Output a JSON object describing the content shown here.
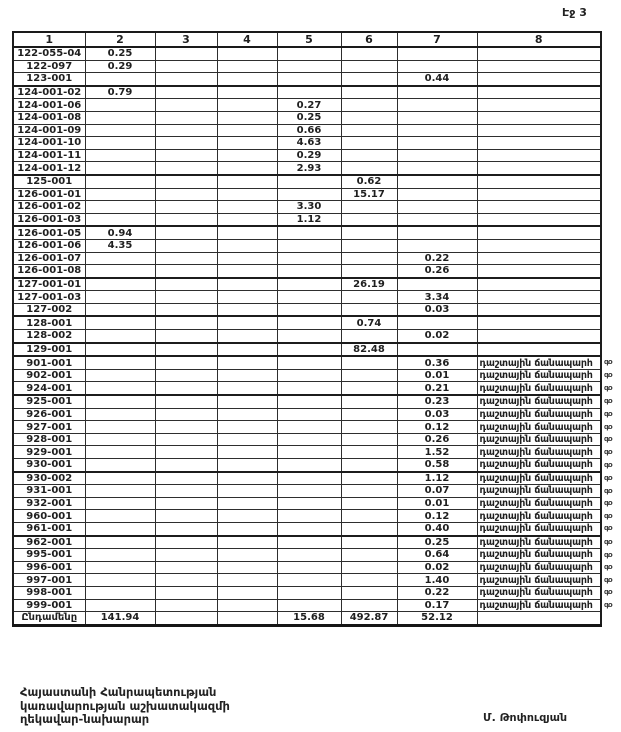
{
  "page_label": "Էջ 3",
  "table": {
    "headers": [
      "1",
      "2",
      "3",
      "4",
      "5",
      "6",
      "7",
      "8"
    ],
    "road_label": "դաշտային ճանապարհ",
    "margin_mark": "գօ",
    "rows": [
      {
        "id": "122-055-04",
        "cells": [
          "0.25",
          "",
          "",
          "",
          "",
          "",
          ""
        ]
      },
      {
        "id": "122-097",
        "cells": [
          "0.29",
          "",
          "",
          "",
          "",
          "",
          ""
        ]
      },
      {
        "id": "123-001",
        "cells": [
          "",
          "",
          "",
          "",
          "",
          "0.44",
          ""
        ]
      },
      {
        "id": "124-001-02",
        "cells": [
          "0.79",
          "",
          "",
          "",
          "",
          "",
          ""
        ],
        "thick_top": true
      },
      {
        "id": "124-001-06",
        "cells": [
          "",
          "",
          "",
          "0.27",
          "",
          "",
          ""
        ]
      },
      {
        "id": "124-001-08",
        "cells": [
          "",
          "",
          "",
          "0.25",
          "",
          "",
          ""
        ]
      },
      {
        "id": "124-001-09",
        "cells": [
          "",
          "",
          "",
          "0.66",
          "",
          "",
          ""
        ]
      },
      {
        "id": "124-001-10",
        "cells": [
          "",
          "",
          "",
          "4.63",
          "",
          "",
          ""
        ]
      },
      {
        "id": "124-001-11",
        "cells": [
          "",
          "",
          "",
          "0.29",
          "",
          "",
          ""
        ]
      },
      {
        "id": "124-001-12",
        "cells": [
          "",
          "",
          "",
          "2.93",
          "",
          "",
          ""
        ]
      },
      {
        "id": "125-001",
        "cells": [
          "",
          "",
          "",
          "",
          "0.62",
          "",
          ""
        ],
        "thick_top": true
      },
      {
        "id": "126-001-01",
        "cells": [
          "",
          "",
          "",
          "",
          "15.17",
          "",
          ""
        ]
      },
      {
        "id": "126-001-02",
        "cells": [
          "",
          "",
          "",
          "3.30",
          "",
          "",
          ""
        ]
      },
      {
        "id": "126-001-03",
        "cells": [
          "",
          "",
          "",
          "1.12",
          "",
          "",
          ""
        ]
      },
      {
        "id": "126-001-05",
        "cells": [
          "0.94",
          "",
          "",
          "",
          "",
          "",
          ""
        ],
        "thick_top": true
      },
      {
        "id": "126-001-06",
        "cells": [
          "4.35",
          "",
          "",
          "",
          "",
          "",
          ""
        ]
      },
      {
        "id": "126-001-07",
        "cells": [
          "",
          "",
          "",
          "",
          "",
          "0.22",
          ""
        ]
      },
      {
        "id": "126-001-08",
        "cells": [
          "",
          "",
          "",
          "",
          "",
          "0.26",
          ""
        ]
      },
      {
        "id": "127-001-01",
        "cells": [
          "",
          "",
          "",
          "",
          "26.19",
          "",
          ""
        ],
        "thick_top": true
      },
      {
        "id": "127-001-03",
        "cells": [
          "",
          "",
          "",
          "",
          "",
          "3.34",
          ""
        ]
      },
      {
        "id": "127-002",
        "cells": [
          "",
          "",
          "",
          "",
          "",
          "0.03",
          ""
        ]
      },
      {
        "id": "128-001",
        "cells": [
          "",
          "",
          "",
          "",
          "0.74",
          "",
          ""
        ],
        "thick_top": true
      },
      {
        "id": "128-002",
        "cells": [
          "",
          "",
          "",
          "",
          "",
          "0.02",
          ""
        ]
      },
      {
        "id": "129-001",
        "cells": [
          "",
          "",
          "",
          "",
          "82.48",
          "",
          ""
        ],
        "thick_top": true
      },
      {
        "id": "901-001",
        "cells": [
          "",
          "",
          "",
          "",
          "",
          "0.36",
          "դաշտային ճանապարհ"
        ],
        "mark": true,
        "thick_top": true
      },
      {
        "id": "902-001",
        "cells": [
          "",
          "",
          "",
          "",
          "",
          "0.01",
          "դաշտային ճանապարհ"
        ],
        "mark": true
      },
      {
        "id": "924-001",
        "cells": [
          "",
          "",
          "",
          "",
          "",
          "0.21",
          "դաշտային ճանապարհ"
        ],
        "mark": true
      },
      {
        "id": "925-001",
        "cells": [
          "",
          "",
          "",
          "",
          "",
          "0.23",
          "դաշտային ճանապարհ"
        ],
        "mark": true,
        "thick_top": true
      },
      {
        "id": "926-001",
        "cells": [
          "",
          "",
          "",
          "",
          "",
          "0.03",
          "դաշտային ճանապարհ"
        ],
        "mark": true
      },
      {
        "id": "927-001",
        "cells": [
          "",
          "",
          "",
          "",
          "",
          "0.12",
          "դաշտային ճանապարհ"
        ],
        "mark": true
      },
      {
        "id": "928-001",
        "cells": [
          "",
          "",
          "",
          "",
          "",
          "0.26",
          "դաշտային ճանապարհ"
        ],
        "mark": true
      },
      {
        "id": "929-001",
        "cells": [
          "",
          "",
          "",
          "",
          "",
          "1.52",
          "դաշտային ճանապարհ"
        ],
        "mark": true
      },
      {
        "id": "930-001",
        "cells": [
          "",
          "",
          "",
          "",
          "",
          "0.58",
          "դաշտային ճանապարհ"
        ],
        "mark": true
      },
      {
        "id": "930-002",
        "cells": [
          "",
          "",
          "",
          "",
          "",
          "1.12",
          "դաշտային ճանապարհ"
        ],
        "mark": true,
        "thick_top": true
      },
      {
        "id": "931-001",
        "cells": [
          "",
          "",
          "",
          "",
          "",
          "0.07",
          "դաշտային ճանապարհ"
        ],
        "mark": true
      },
      {
        "id": "932-001",
        "cells": [
          "",
          "",
          "",
          "",
          "",
          "0.01",
          "դաշտային ճանապարհ"
        ],
        "mark": true
      },
      {
        "id": "960-001",
        "cells": [
          "",
          "",
          "",
          "",
          "",
          "0.12",
          "դաշտային ճանապարհ"
        ],
        "mark": true
      },
      {
        "id": "961-001",
        "cells": [
          "",
          "",
          "",
          "",
          "",
          "0.40",
          "դաշտային ճանապարհ"
        ],
        "mark": true
      },
      {
        "id": "962-001",
        "cells": [
          "",
          "",
          "",
          "",
          "",
          "0.25",
          "դաշտային ճանապարհ"
        ],
        "mark": true,
        "thick_top": true
      },
      {
        "id": "995-001",
        "cells": [
          "",
          "",
          "",
          "",
          "",
          "0.64",
          "դաշտային ճանապարհ"
        ],
        "mark": true
      },
      {
        "id": "996-001",
        "cells": [
          "",
          "",
          "",
          "",
          "",
          "0.02",
          "դաշտային ճանապարհ"
        ],
        "mark": true
      },
      {
        "id": "997-001",
        "cells": [
          "",
          "",
          "",
          "",
          "",
          "1.40",
          "դաշտային ճանապարհ"
        ],
        "mark": true
      },
      {
        "id": "998-001",
        "cells": [
          "",
          "",
          "",
          "",
          "",
          "0.22",
          "դաշտային ճանապարհ"
        ],
        "mark": true
      },
      {
        "id": "999-001",
        "cells": [
          "",
          "",
          "",
          "",
          "",
          "0.17",
          "դաշտային ճանապարհ"
        ],
        "mark": true
      }
    ],
    "total_row": {
      "label": "Ընդամենը",
      "cells": [
        "141.94",
        "",
        "",
        "15.68",
        "492.87",
        "52.12",
        ""
      ]
    }
  },
  "footer": {
    "org_lines": [
      "Հայաստանի Հանրապետության",
      "կառավարության աշխատակազմի",
      "ղեկավար-նախարար"
    ],
    "signature": "Մ. Թոփուզյան"
  }
}
